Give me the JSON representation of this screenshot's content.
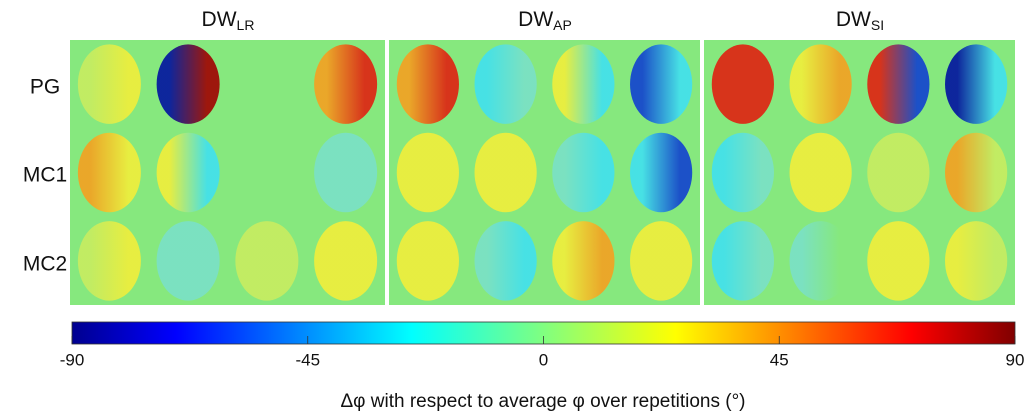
{
  "columns": [
    {
      "main": "DW",
      "sub": "LR"
    },
    {
      "main": "DW",
      "sub": "AP"
    },
    {
      "main": "DW",
      "sub": "SI"
    }
  ],
  "rows": [
    "PG",
    "MC1",
    "MC2"
  ],
  "colorbar": {
    "lim": [
      -90,
      90
    ],
    "ticks": [
      -90,
      -45,
      0,
      45,
      90
    ],
    "label": "Δφ with respect to average φ over repetitions (°)"
  }
}
